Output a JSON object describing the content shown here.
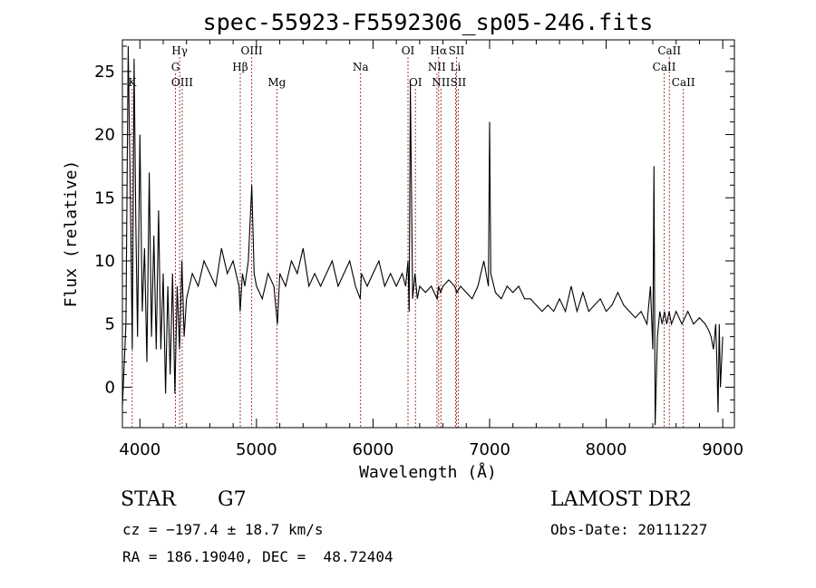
{
  "chart_data": {
    "type": "line",
    "title": "spec-55923-F5592306_sp05-246.fits",
    "xlabel": "Wavelength (Å)",
    "ylabel": "Flux (relative)",
    "xlim": [
      3850,
      9100
    ],
    "ylim": [
      -3.2,
      27.5
    ],
    "xticks": [
      4000,
      5000,
      6000,
      7000,
      8000,
      9000
    ],
    "yticks": [
      0,
      5,
      10,
      15,
      20,
      25
    ],
    "grid": false,
    "series": [
      {
        "line_color": "#000000",
        "x": [
          3850,
          3880,
          3900,
          3920,
          3935,
          3950,
          3965,
          3980,
          4000,
          4020,
          4040,
          4060,
          4080,
          4100,
          4120,
          4140,
          4160,
          4180,
          4200,
          4220,
          4240,
          4260,
          4280,
          4300,
          4320,
          4340,
          4360,
          4380,
          4400,
          4450,
          4500,
          4550,
          4600,
          4650,
          4700,
          4750,
          4800,
          4850,
          4860,
          4880,
          4900,
          4930,
          4960,
          4980,
          5000,
          5050,
          5100,
          5150,
          5180,
          5200,
          5250,
          5300,
          5350,
          5400,
          5450,
          5500,
          5550,
          5600,
          5650,
          5700,
          5750,
          5800,
          5850,
          5890,
          5900,
          5950,
          6000,
          6050,
          6100,
          6150,
          6200,
          6250,
          6280,
          6300,
          6310,
          6320,
          6340,
          6360,
          6380,
          6400,
          6450,
          6500,
          6550,
          6562,
          6580,
          6600,
          6650,
          6700,
          6720,
          6750,
          6800,
          6850,
          6900,
          6950,
          6990,
          7000,
          7010,
          7050,
          7100,
          7150,
          7200,
          7250,
          7300,
          7350,
          7400,
          7450,
          7500,
          7550,
          7600,
          7650,
          7700,
          7750,
          7800,
          7850,
          7900,
          7950,
          8000,
          8050,
          8100,
          8150,
          8200,
          8250,
          8300,
          8350,
          8380,
          8400,
          8410,
          8420,
          8440,
          8460,
          8480,
          8500,
          8520,
          8540,
          8560,
          8600,
          8650,
          8700,
          8750,
          8800,
          8850,
          8880,
          8900,
          8920,
          8940,
          8950,
          8960,
          8970,
          8980,
          9000
        ],
        "values": [
          -1.5,
          5,
          27,
          14,
          3,
          26,
          13,
          4,
          20,
          6,
          11,
          2,
          17,
          4,
          12,
          3,
          14,
          3,
          9,
          -0.5,
          8,
          1,
          9,
          -0.5,
          8,
          3,
          10,
          4,
          7,
          9,
          8,
          10,
          9,
          8,
          11,
          9,
          10,
          8,
          6,
          9,
          8,
          10,
          16,
          9,
          8,
          7,
          9,
          8,
          5,
          9,
          8,
          10,
          9,
          11,
          8,
          9,
          8,
          9,
          10,
          8,
          9,
          10,
          8,
          7,
          9,
          8,
          9,
          10,
          8,
          9,
          8,
          9,
          8,
          10,
          6,
          24,
          7,
          9,
          7,
          8,
          7.5,
          8,
          7,
          8,
          7.5,
          8,
          8.5,
          8,
          7.5,
          8,
          7.5,
          7,
          8,
          10,
          8,
          21,
          9,
          7.5,
          7,
          8,
          7.5,
          8,
          7,
          7,
          6.5,
          6,
          6.5,
          6,
          7,
          6,
          8,
          6,
          7.5,
          6,
          6.5,
          7,
          6,
          6.5,
          7.5,
          6.5,
          6,
          5.5,
          6,
          5,
          8,
          3,
          17.5,
          -3,
          4,
          6,
          5,
          6,
          5,
          6,
          5,
          6,
          5,
          6,
          5,
          5.5,
          5,
          4.5,
          4,
          3,
          5,
          2,
          -2,
          5,
          0,
          4
        ]
      }
    ],
    "line_markers": {
      "color": "#a33c3c",
      "lines": [
        {
          "name": "K",
          "wave": 3934,
          "row": 3
        },
        {
          "name": "Hγ",
          "wave": 4341,
          "row": 1
        },
        {
          "name": "G",
          "wave": 4305,
          "row": 2
        },
        {
          "name": "OIII",
          "wave": 4363,
          "row": 3
        },
        {
          "name": "Hβ",
          "wave": 4861,
          "row": 2
        },
        {
          "name": "OIII",
          "wave": 4959,
          "row": 1
        },
        {
          "name": "Mg",
          "wave": 5175,
          "row": 3
        },
        {
          "name": "Na",
          "wave": 5893,
          "row": 2
        },
        {
          "name": "OI",
          "wave": 6300,
          "row": 1
        },
        {
          "name": "OI",
          "wave": 6364,
          "row": 3
        },
        {
          "name": "Hα",
          "wave": 6563,
          "row": 1
        },
        {
          "name": "NII",
          "wave": 6548,
          "row": 2
        },
        {
          "name": "NII",
          "wave": 6583,
          "row": 3
        },
        {
          "name": "SII",
          "wave": 6716,
          "row": 1
        },
        {
          "name": "Li",
          "wave": 6708,
          "row": 2
        },
        {
          "name": "SII",
          "wave": 6731,
          "row": 3
        },
        {
          "name": "CaII",
          "wave": 8542,
          "row": 1
        },
        {
          "name": "CaII",
          "wave": 8498,
          "row": 2
        },
        {
          "name": "CaII",
          "wave": 8662,
          "row": 3
        }
      ]
    }
  },
  "info": {
    "object_class": "STAR",
    "subclass": "G7",
    "survey": "LAMOST DR2",
    "redshift": "cz = −197.4 ± 18.7 km/s",
    "obs_date": "Obs-Date: 20111227",
    "coords": "RA = 186.19040, DEC =  48.72404"
  }
}
